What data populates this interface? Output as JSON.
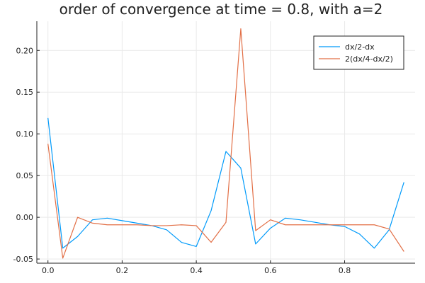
{
  "chart_data": {
    "type": "line",
    "title": "order of convergence at time = 0.8, with a=2",
    "xlabel": "",
    "ylabel": "",
    "xlim": [
      -0.03,
      0.99
    ],
    "ylim": [
      -0.055,
      0.235
    ],
    "grid": true,
    "legend_position": "top-right",
    "x_ticks": [
      {
        "value": 0.0,
        "label": "0.0"
      },
      {
        "value": 0.2,
        "label": "0.2"
      },
      {
        "value": 0.4,
        "label": "0.4"
      },
      {
        "value": 0.6,
        "label": "0.6"
      },
      {
        "value": 0.8,
        "label": "0.8"
      }
    ],
    "y_ticks": [
      {
        "value": -0.05,
        "label": "-0.05"
      },
      {
        "value": 0.0,
        "label": "0.00"
      },
      {
        "value": 0.05,
        "label": "0.05"
      },
      {
        "value": 0.1,
        "label": "0.10"
      },
      {
        "value": 0.15,
        "label": "0.15"
      },
      {
        "value": 0.2,
        "label": "0.20"
      }
    ],
    "x": [
      0.0,
      0.04,
      0.08,
      0.12,
      0.16,
      0.2,
      0.24,
      0.28,
      0.32,
      0.36,
      0.4,
      0.44,
      0.48,
      0.52,
      0.56,
      0.6,
      0.64,
      0.68,
      0.72,
      0.76,
      0.8,
      0.84,
      0.88,
      0.92,
      0.96
    ],
    "series": [
      {
        "name": "dx/2-dx",
        "color": "#009AFA",
        "values": [
          0.119,
          -0.037,
          -0.023,
          -0.003,
          -0.001,
          -0.004,
          -0.007,
          -0.01,
          -0.015,
          -0.03,
          -0.035,
          0.008,
          0.079,
          0.059,
          -0.032,
          -0.013,
          -0.001,
          -0.003,
          -0.006,
          -0.009,
          -0.011,
          -0.02,
          -0.037,
          -0.015,
          0.042
        ]
      },
      {
        "name": "2(dx/4-dx/2)",
        "color": "#E26F46",
        "values": [
          0.088,
          -0.049,
          0.0,
          -0.007,
          -0.009,
          -0.009,
          -0.009,
          -0.01,
          -0.01,
          -0.009,
          -0.01,
          -0.03,
          -0.006,
          0.226,
          -0.016,
          -0.003,
          -0.009,
          -0.009,
          -0.009,
          -0.009,
          -0.009,
          -0.009,
          -0.009,
          -0.014,
          -0.041
        ]
      }
    ]
  }
}
